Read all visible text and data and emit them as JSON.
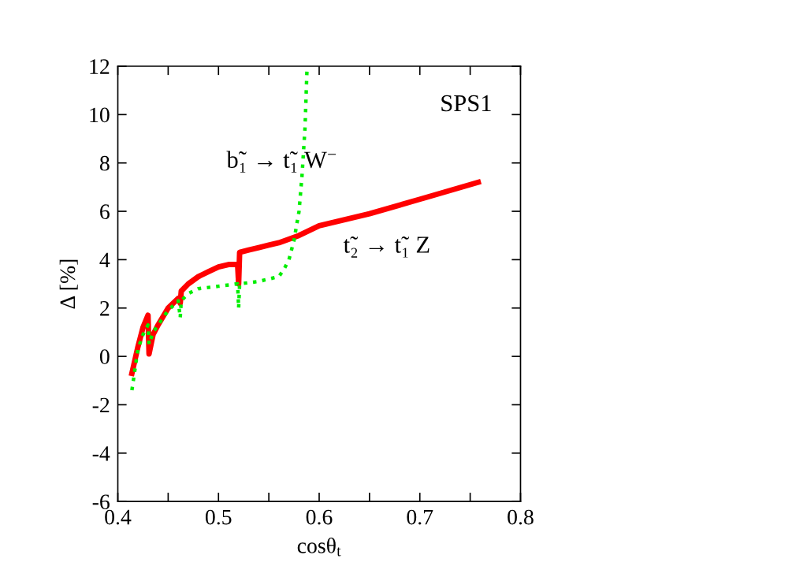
{
  "chart_data": {
    "type": "line",
    "xlabel": "cosθ$_{t}$",
    "ylabel": "Δ [%]",
    "xlim": [
      0.4,
      0.8
    ],
    "ylim": [
      -6,
      12
    ],
    "xticks": [
      0.4,
      {
        "value": 0.45,
        "label": null
      },
      0.5,
      {
        "value": 0.55,
        "label": null
      },
      0.6,
      {
        "value": 0.65,
        "label": null
      },
      0.7,
      {
        "value": 0.75,
        "label": null
      },
      0.8
    ],
    "yticks": [
      -6,
      -4,
      -2,
      0,
      2,
      4,
      6,
      8,
      10,
      12
    ],
    "grid": false,
    "legend": false,
    "annotations": [
      "SPS1",
      "b̃₁ → t̃₁ W$^{−}$",
      "t̃₂ → t̃₁ Z"
    ],
    "series": [
      {
        "color": "#ff0000",
        "line_style": "solid",
        "x": [
          0.414,
          0.42,
          0.425,
          0.43,
          0.431,
          0.435,
          0.44,
          0.45,
          0.46,
          0.462,
          0.463,
          0.47,
          0.48,
          0.49,
          0.5,
          0.51,
          0.519,
          0.52,
          0.521,
          0.53,
          0.54,
          0.55,
          0.56,
          0.58,
          0.6,
          0.65,
          0.7,
          0.758
        ],
        "values": [
          -0.7,
          0.4,
          1.2,
          1.7,
          0.1,
          0.9,
          1.3,
          2.0,
          2.4,
          2.2,
          2.7,
          3.0,
          3.3,
          3.5,
          3.7,
          3.8,
          3.8,
          3.0,
          4.3,
          4.4,
          4.5,
          4.6,
          4.7,
          5.0,
          5.4,
          5.9,
          6.5,
          7.2
        ]
      },
      {
        "color": "#00ee00",
        "line_style": "dotted",
        "x": [
          0.414,
          0.42,
          0.425,
          0.43,
          0.431,
          0.435,
          0.44,
          0.45,
          0.46,
          0.462,
          0.463,
          0.47,
          0.48,
          0.5,
          0.519,
          0.52,
          0.521,
          0.54,
          0.56,
          0.565,
          0.57,
          0.575,
          0.58,
          0.583,
          0.586,
          0.588
        ],
        "values": [
          -1.4,
          0.3,
          0.9,
          1.3,
          0.5,
          1.0,
          1.3,
          1.9,
          2.3,
          1.6,
          2.3,
          2.6,
          2.8,
          2.9,
          3.0,
          2.0,
          3.0,
          3.1,
          3.3,
          3.6,
          4.0,
          4.8,
          6.0,
          7.5,
          9.5,
          12
        ]
      }
    ]
  }
}
